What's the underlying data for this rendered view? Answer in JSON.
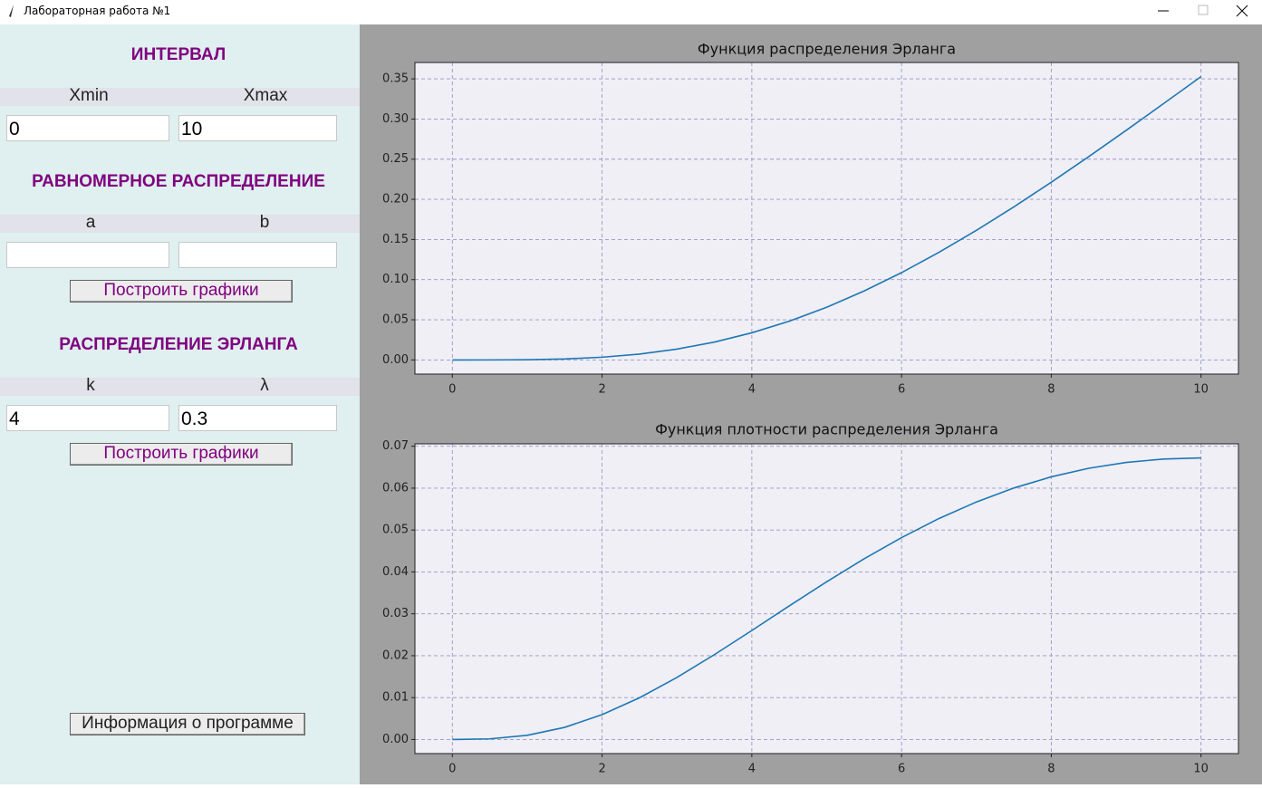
{
  "window_title": "Лабораторная работа №1",
  "interval": {
    "heading": "ИНТЕРВАЛ",
    "labels": [
      "Xmin",
      "Xmax"
    ],
    "inputs": [
      "0",
      "10"
    ]
  },
  "uniform": {
    "heading": "РАВНОМЕРНОЕ РАСПРЕДЕЛЕНИЕ",
    "labels": [
      "a",
      "b"
    ],
    "button": "Построить графики"
  },
  "erlang": {
    "heading": "РАСПРЕДЕЛЕНИЕ ЭРЛАНГА",
    "labels": [
      "k",
      "λ"
    ],
    "inputs": [
      "4",
      "0.3"
    ],
    "button": "Построить графики"
  },
  "info_button": "Информация о программе",
  "chart_data": [
    {
      "type": "line",
      "title": "Функция распределения Эрланга",
      "color": "#1f77b4",
      "grid": true,
      "x": [
        0,
        0.5,
        1,
        1.5,
        2,
        2.5,
        3,
        3.5,
        4,
        4.5,
        5,
        5.5,
        6,
        6.5,
        7,
        7.5,
        8,
        8.5,
        9,
        9.5,
        10
      ],
      "values": [
        0,
        2e-05,
        0.00027,
        0.0012,
        0.0034,
        0.0073,
        0.0135,
        0.0222,
        0.0338,
        0.0482,
        0.0656,
        0.0859,
        0.1087,
        0.134,
        0.1614,
        0.1906,
        0.2213,
        0.2532,
        0.2859,
        0.3192,
        0.3528
      ],
      "xlim": [
        -0.5,
        10.5
      ],
      "ylim": [
        -0.0176,
        0.3704
      ],
      "xticks": [
        0,
        2,
        4,
        6,
        8,
        10
      ],
      "yticks": [
        {
          "value": 0,
          "label": "0.00"
        },
        {
          "value": 0.05,
          "label": "0.05"
        },
        {
          "value": 0.1,
          "label": "0.10"
        },
        {
          "value": 0.15,
          "label": "0.15"
        },
        {
          "value": 0.2,
          "label": "0.20"
        },
        {
          "value": 0.25,
          "label": "0.25"
        },
        {
          "value": 0.3,
          "label": "0.30"
        },
        {
          "value": 0.35,
          "label": "0.35"
        }
      ]
    },
    {
      "type": "line",
      "title": "Функция плотности распределения Эрланга",
      "color": "#1f77b4",
      "grid": true,
      "x": [
        0,
        0.5,
        1,
        1.5,
        2,
        2.5,
        3,
        3.5,
        4,
        4.5,
        5,
        5.5,
        6,
        6.5,
        7,
        7.5,
        8,
        8.5,
        9,
        9.5,
        10
      ],
      "values": [
        0,
        0.00015,
        0.001,
        0.0029,
        0.00593,
        0.00996,
        0.01482,
        0.02026,
        0.02602,
        0.03189,
        0.03765,
        0.04314,
        0.0482,
        0.05275,
        0.0567,
        0.06003,
        0.0627,
        0.06474,
        0.06614,
        0.06695,
        0.06721
      ],
      "xlim": [
        -0.5,
        10.5
      ],
      "ylim": [
        -0.00336,
        0.07058
      ],
      "xticks": [
        0,
        2,
        4,
        6,
        8,
        10
      ],
      "yticks": [
        {
          "value": 0,
          "label": "0.00"
        },
        {
          "value": 0.01,
          "label": "0.01"
        },
        {
          "value": 0.02,
          "label": "0.02"
        },
        {
          "value": 0.03,
          "label": "0.03"
        },
        {
          "value": 0.04,
          "label": "0.04"
        },
        {
          "value": 0.05,
          "label": "0.05"
        },
        {
          "value": 0.06,
          "label": "0.06"
        },
        {
          "value": 0.07,
          "label": "0.07"
        }
      ]
    }
  ]
}
